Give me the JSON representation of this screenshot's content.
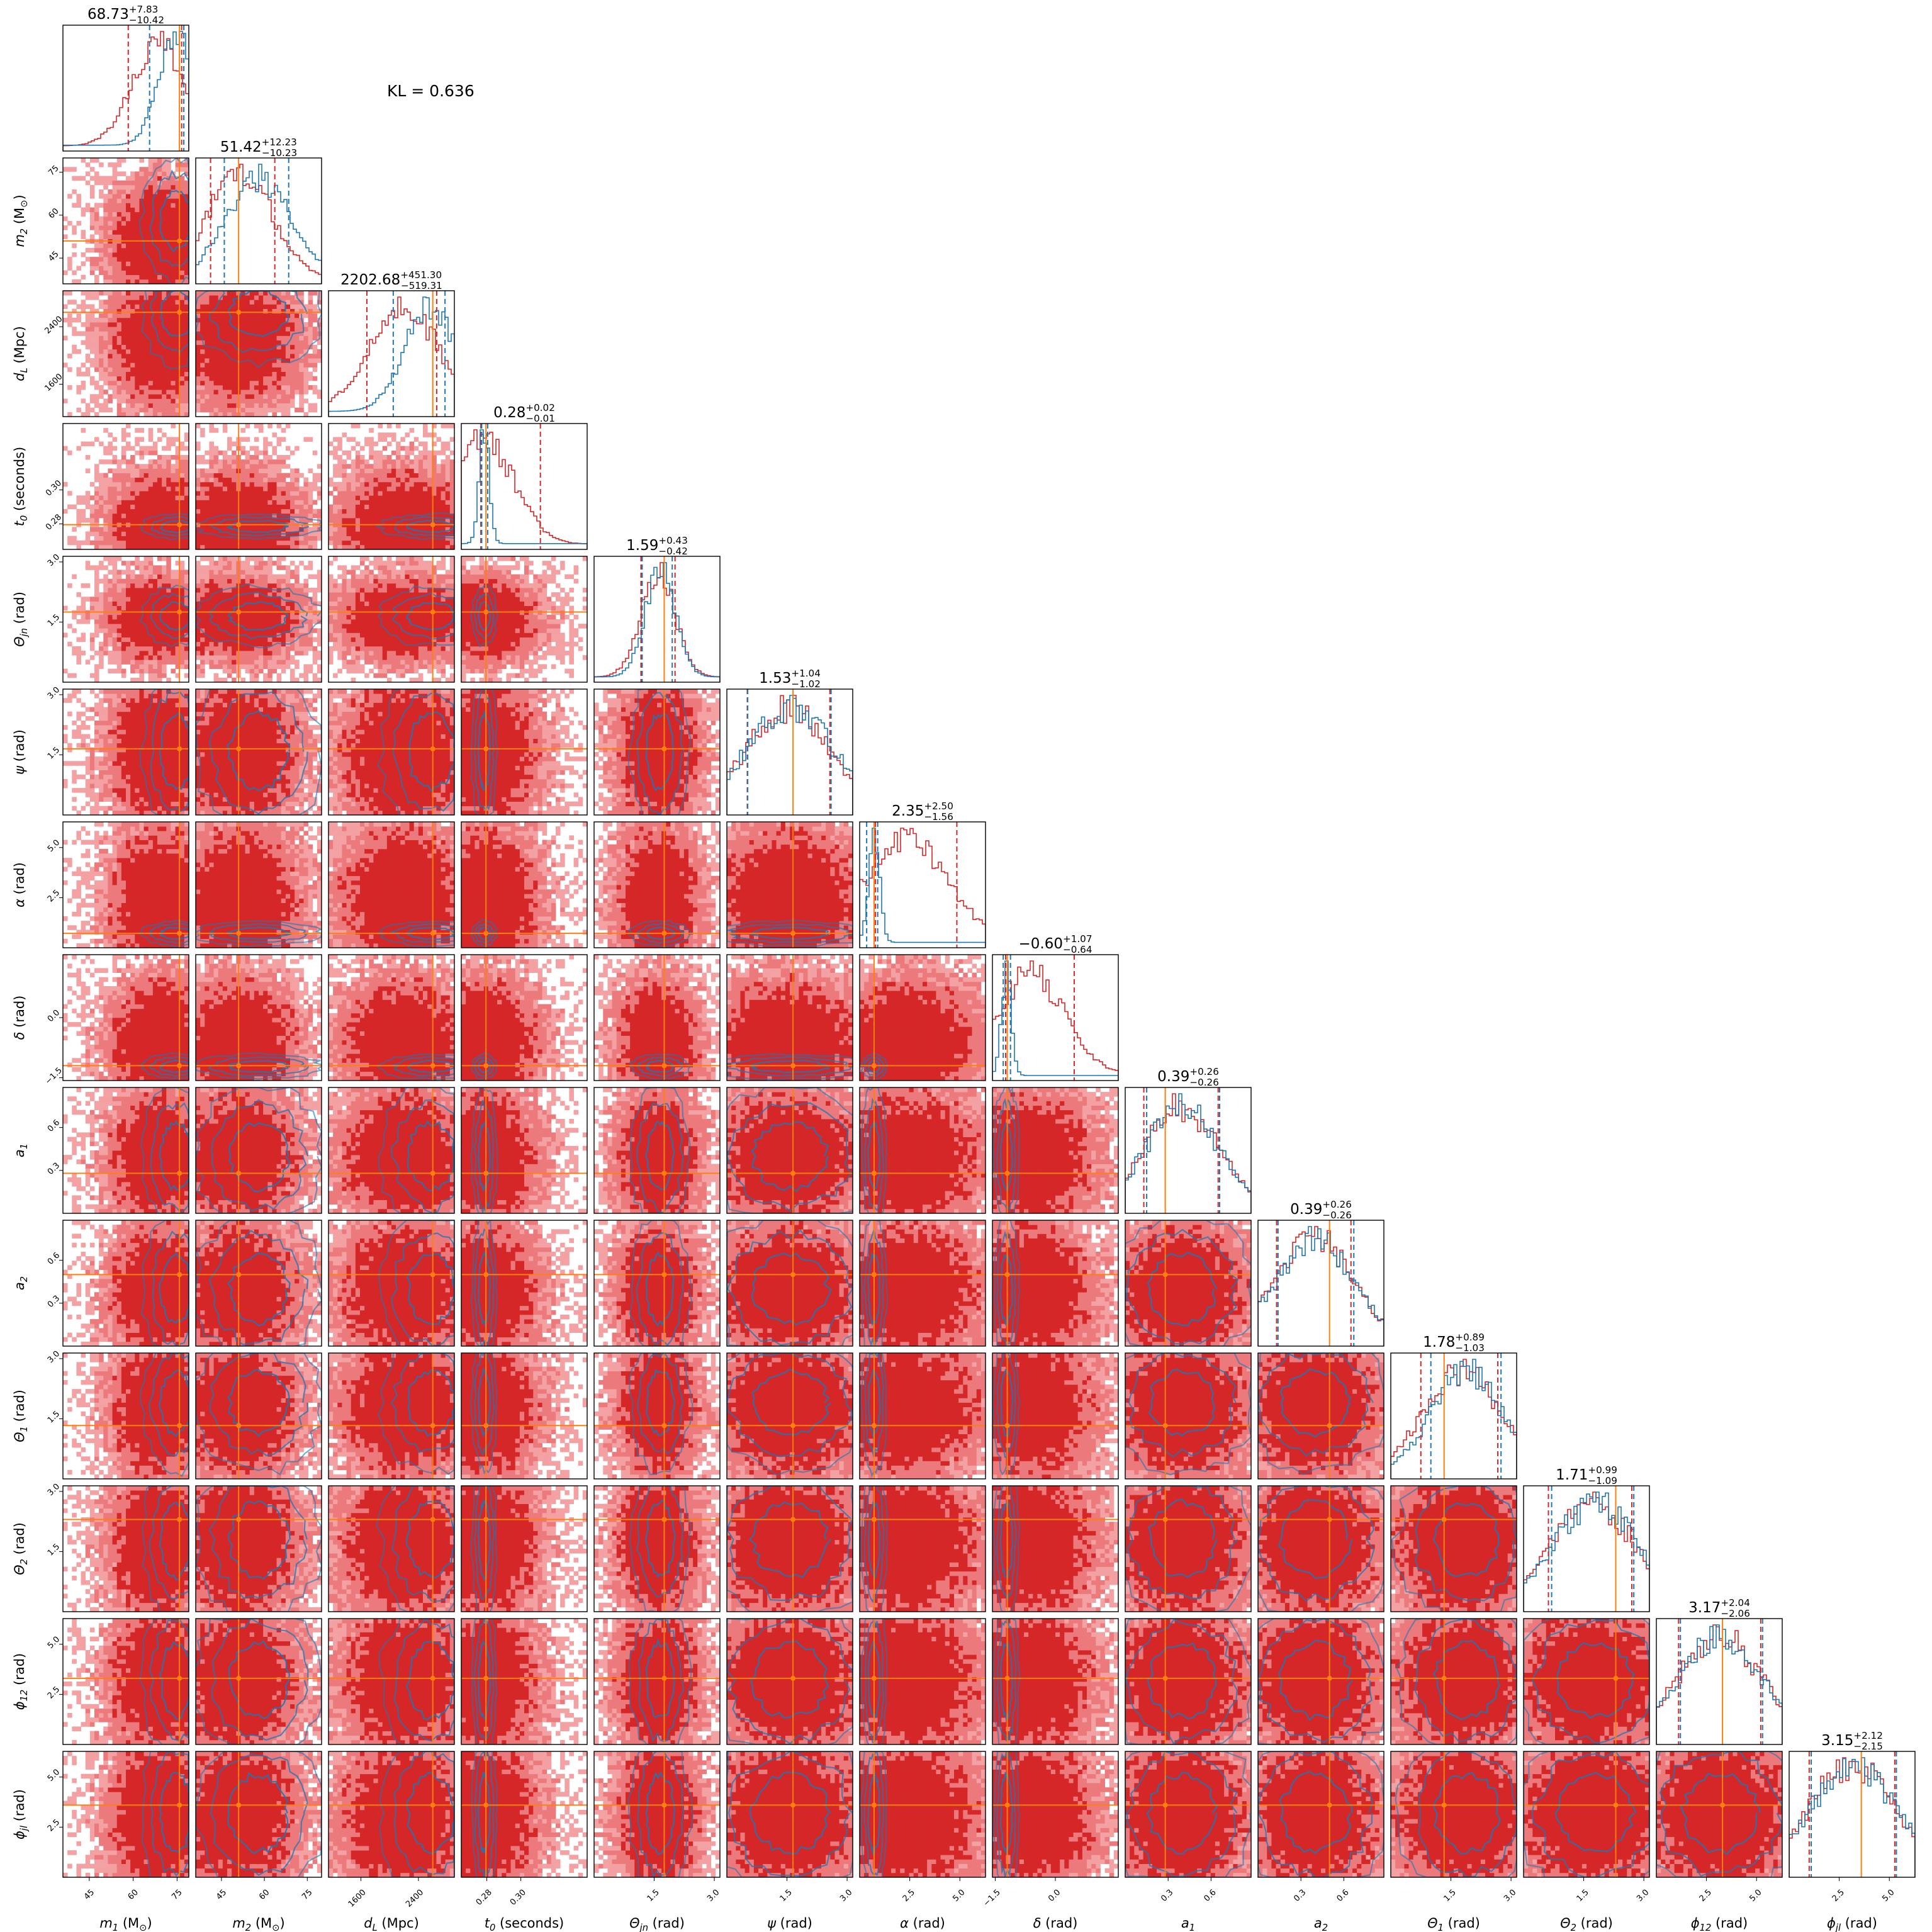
{
  "annotation": {
    "text": "KL = 0.636"
  },
  "colors": {
    "series_a_filled": "#d62728",
    "series_a_light": "#f3a1a3",
    "series_a_mid": "#ec7a7c",
    "series_b_contour": "#1f77b4",
    "injection": "#ff7f0e",
    "frame": "#000000"
  },
  "chart_data": {
    "type": "corner",
    "grid": false,
    "legend": "none",
    "series": [
      {
        "style": "filled contours and step histogram",
        "color": "#d62728"
      },
      {
        "style": "contour lines and step histogram",
        "color": "#1f77b4"
      }
    ],
    "injection_marker": {
      "style": "crosshair lines",
      "color": "#ff7f0e"
    },
    "parameters": [
      {
        "label_symbol": "m",
        "label_sub": "1",
        "label_unit": " (M",
        "label_unit_sub": "⊙",
        "label_close": ")",
        "range": [
          36,
          79
        ],
        "ticks": [
          45,
          60,
          75
        ],
        "tick_labels": [
          "45",
          "60",
          "75"
        ],
        "summary": {
          "median": "68.73",
          "plus": "+7.83",
          "minus": "−10.42"
        },
        "injection": 75.8,
        "quantiles_a": [
          58.31,
          68.73,
          76.56
        ],
        "quantiles_b": [
          65.6,
          74.7,
          77.3
        ]
      },
      {
        "label_symbol": "m",
        "label_sub": "2",
        "label_unit": " (M",
        "label_unit_sub": "⊙",
        "label_close": ")",
        "range": [
          36,
          80
        ],
        "ticks": [
          45,
          60,
          75
        ],
        "tick_labels": [
          "45",
          "60",
          "75"
        ],
        "summary": {
          "median": "51.42",
          "plus": "+12.23",
          "minus": "−10.23"
        },
        "injection": 51.0,
        "quantiles_a": [
          41.19,
          51.42,
          63.65
        ],
        "quantiles_b": [
          46.0,
          58.0,
          68.5
        ]
      },
      {
        "label_symbol": "d",
        "label_sub": "L",
        "label_unit": " (Mpc)",
        "range": [
          1150,
          2900
        ],
        "ticks": [
          1600,
          2400
        ],
        "tick_labels": [
          "1600",
          "2400"
        ],
        "summary": {
          "median": "2202.68",
          "plus": "+451.30",
          "minus": "−519.31"
        },
        "injection": 2600,
        "quantiles_a": [
          1683.37,
          2202.68,
          2653.98
        ],
        "quantiles_b": [
          2050,
          2580,
          2770
        ]
      },
      {
        "label_symbol": "t",
        "label_sub": "0",
        "label_unit": " (seconds)",
        "range": [
          0.265,
          0.339
        ],
        "ticks": [
          0.28,
          0.3
        ],
        "tick_labels": [
          "0.28",
          "0.30"
        ],
        "summary": {
          "median": "0.28",
          "plus": "+0.02",
          "minus": "−0.01"
        },
        "injection": 0.2795,
        "quantiles_a": [
          0.2765,
          0.2785,
          0.3115
        ],
        "quantiles_b": [
          0.277,
          0.2785,
          0.2805
        ]
      },
      {
        "label_symbol": "Θ",
        "label_sub": "jn",
        "label_unit": " (rad)",
        "range": [
          0.0,
          3.14
        ],
        "ticks": [
          1.5,
          3.0
        ],
        "tick_labels": [
          "1.5",
          "3.0"
        ],
        "summary": {
          "median": "1.59",
          "plus": "+0.43",
          "minus": "−0.42"
        },
        "injection": 1.75,
        "quantiles_a": [
          1.17,
          1.59,
          2.02
        ],
        "quantiles_b": [
          1.2,
          1.65,
          1.95
        ]
      },
      {
        "label_symbol": "ψ",
        "label_unit": " (rad)",
        "range": [
          0.0,
          3.14
        ],
        "ticks": [
          1.5,
          3.0
        ],
        "tick_labels": [
          "1.5",
          "3.0"
        ],
        "summary": {
          "median": "1.53",
          "plus": "+1.04",
          "minus": "−1.02"
        },
        "injection": 1.65,
        "quantiles_a": [
          0.51,
          1.53,
          2.57
        ],
        "quantiles_b": [
          0.52,
          1.58,
          2.6
        ]
      },
      {
        "label_symbol": "α",
        "label_unit": " (rad)",
        "range": [
          0.0,
          6.28
        ],
        "ticks": [
          2.5,
          5.0
        ],
        "tick_labels": [
          "2.5",
          "5.0"
        ],
        "summary": {
          "median": "2.35",
          "plus": "+2.50",
          "minus": "−1.56"
        },
        "injection": 0.72,
        "quantiles_a": [
          0.79,
          2.35,
          4.85
        ],
        "quantiles_b": [
          0.35,
          0.72,
          0.9
        ]
      },
      {
        "label_symbol": "δ",
        "label_unit": " (rad)",
        "range": [
          -1.57,
          1.57
        ],
        "ticks": [
          -1.5,
          0.0
        ],
        "tick_labels": [
          "−1.5",
          "0.0"
        ],
        "summary": {
          "median": "−0.60",
          "plus": "+1.07",
          "minus": "−0.64"
        },
        "injection": -1.2,
        "quantiles_a": [
          -1.24,
          -0.6,
          0.47
        ],
        "quantiles_b": [
          -1.3,
          -1.22,
          -1.12
        ]
      },
      {
        "label_symbol": "a",
        "label_sub": "1",
        "label_unit": "",
        "range": [
          0.0,
          0.88
        ],
        "ticks": [
          0.3,
          0.6
        ],
        "tick_labels": [
          "0.3",
          "0.6"
        ],
        "summary": {
          "median": "0.39",
          "plus": "+0.26",
          "minus": "−0.26"
        },
        "injection": 0.28,
        "quantiles_a": [
          0.13,
          0.39,
          0.65
        ],
        "quantiles_b": [
          0.15,
          0.4,
          0.66
        ]
      },
      {
        "label_symbol": "a",
        "label_sub": "2",
        "label_unit": "",
        "range": [
          0.0,
          0.88
        ],
        "ticks": [
          0.3,
          0.6
        ],
        "tick_labels": [
          "0.3",
          "0.6"
        ],
        "summary": {
          "median": "0.39",
          "plus": "+0.26",
          "minus": "−0.26"
        },
        "injection": 0.5,
        "quantiles_a": [
          0.13,
          0.39,
          0.65
        ],
        "quantiles_b": [
          0.14,
          0.4,
          0.67
        ]
      },
      {
        "label_symbol": "Θ",
        "label_sub": "1",
        "label_unit": " (rad)",
        "range": [
          0.0,
          3.14
        ],
        "ticks": [
          1.5,
          3.0
        ],
        "tick_labels": [
          "1.5",
          "3.0"
        ],
        "summary": {
          "median": "1.78",
          "plus": "+0.89",
          "minus": "−1.03"
        },
        "injection": 1.33,
        "quantiles_a": [
          0.75,
          1.78,
          2.67
        ],
        "quantiles_b": [
          1.0,
          1.9,
          2.75
        ]
      },
      {
        "label_symbol": "Θ",
        "label_sub": "2",
        "label_unit": " (rad)",
        "range": [
          0.0,
          3.14
        ],
        "ticks": [
          1.5,
          3.0
        ],
        "tick_labels": [
          "1.5",
          "3.0"
        ],
        "summary": {
          "median": "1.71",
          "plus": "+0.99",
          "minus": "−1.09"
        },
        "injection": 2.3,
        "quantiles_a": [
          0.62,
          1.71,
          2.7
        ],
        "quantiles_b": [
          0.7,
          1.8,
          2.75
        ]
      },
      {
        "label_symbol": "ϕ",
        "label_sub": "12",
        "label_unit": " (rad)",
        "range": [
          0.0,
          6.28
        ],
        "ticks": [
          2.5,
          5.0
        ],
        "tick_labels": [
          "2.5",
          "5.0"
        ],
        "summary": {
          "median": "3.17",
          "plus": "+2.04",
          "minus": "−2.06"
        },
        "injection": 3.3,
        "quantiles_a": [
          1.11,
          3.17,
          5.21
        ],
        "quantiles_b": [
          1.2,
          3.2,
          5.3
        ]
      },
      {
        "label_symbol": "ϕ",
        "label_sub": "jl",
        "label_unit": " (rad)",
        "range": [
          0.0,
          6.28
        ],
        "ticks": [
          2.5,
          5.0
        ],
        "tick_labels": [
          "2.5",
          "5.0"
        ],
        "summary": {
          "median": "3.15",
          "plus": "+2.12",
          "minus": "−2.15"
        },
        "injection": 3.6,
        "quantiles_a": [
          1.0,
          3.15,
          5.27
        ],
        "quantiles_b": [
          1.1,
          3.2,
          5.35
        ]
      }
    ]
  }
}
